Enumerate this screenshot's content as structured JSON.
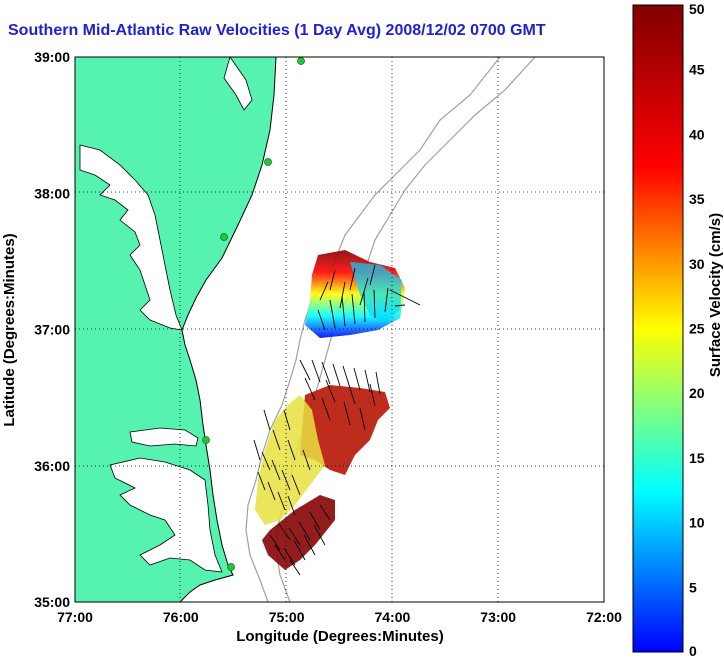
{
  "title": "Southern Mid-Atlantic Raw Velocities (1 Day Avg) 2008/12/02 0700 GMT",
  "map": {
    "xlabel": "Longitude (Degrees:Minutes)",
    "ylabel": "Latitude (Degrees:Minutes)",
    "x_ticks": [
      "77:00",
      "76:00",
      "75:00",
      "74:00",
      "73:00",
      "72:00"
    ],
    "y_ticks": [
      "39:00",
      "38:00",
      "37:00",
      "36:00",
      "35:00"
    ],
    "lon_range": [
      -77,
      -72
    ],
    "lat_range": [
      35,
      39
    ],
    "grid": "dotted",
    "land_color": "#55f2b0",
    "water_color": "#ffffff",
    "bathymetry_color": "#a0a0a0",
    "station_color": "#27c43a"
  },
  "colorbar": {
    "label": "Surface Velocity (cm/s)",
    "ticks": [
      "0",
      "5",
      "10",
      "15",
      "20",
      "25",
      "30",
      "35",
      "40",
      "45",
      "50"
    ],
    "range": [
      0,
      50
    ]
  }
}
